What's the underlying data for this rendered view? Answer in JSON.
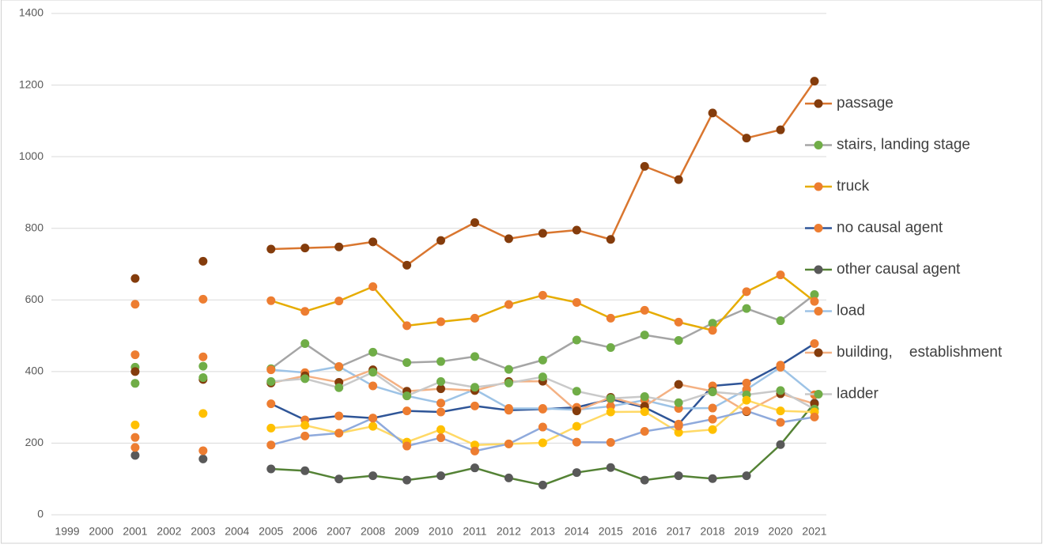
{
  "chart_data": {
    "type": "line",
    "categories": [
      "1999",
      "2000",
      "2001",
      "2002",
      "2003",
      "2004",
      "2005",
      "2006",
      "2007",
      "2008",
      "2009",
      "2010",
      "2011",
      "2012",
      "2013",
      "2014",
      "2015",
      "2016",
      "2017",
      "2018",
      "2019",
      "2020",
      "2021"
    ],
    "ylim": [
      0,
      1400
    ],
    "yticks": [
      0,
      200,
      400,
      600,
      800,
      1000,
      1200,
      1400
    ],
    "grid": true,
    "legend": "right",
    "series": [
      {
        "name": "passage",
        "color": "#d9762f",
        "marker_color": "#843c0c",
        "values": [
          null,
          null,
          660,
          null,
          708,
          null,
          742,
          745,
          748,
          762,
          697,
          766,
          816,
          771,
          786,
          795,
          769,
          973,
          936,
          1122,
          1052,
          1075,
          1211
        ]
      },
      {
        "name": "stairs, landing stage",
        "color": "#a5a5a5",
        "marker_color": "#70ad47",
        "values": [
          null,
          null,
          412,
          null,
          415,
          null,
          408,
          478,
          413,
          454,
          425,
          428,
          442,
          406,
          432,
          488,
          467,
          502,
          487,
          535,
          576,
          542,
          615
        ]
      },
      {
        "name": "truck",
        "color": "#e6ac00",
        "marker_color": "#ed7d31",
        "values": [
          null,
          null,
          588,
          null,
          602,
          null,
          598,
          568,
          597,
          637,
          528,
          539,
          549,
          587,
          613,
          593,
          549,
          571,
          538,
          515,
          623,
          670,
          596
        ]
      },
      {
        "name": "no causal agent",
        "color": "#2f5597",
        "marker_color": "#ed7d31",
        "values": [
          null,
          null,
          447,
          null,
          441,
          null,
          310,
          265,
          276,
          270,
          290,
          287,
          304,
          292,
          295,
          300,
          323,
          300,
          253,
          360,
          368,
          418,
          478
        ]
      },
      {
        "name": "other causal agent",
        "color": "#548235",
        "marker_color": "#595959",
        "values": [
          null,
          null,
          166,
          null,
          156,
          null,
          128,
          123,
          100,
          109,
          97,
          109,
          131,
          103,
          83,
          118,
          132,
          97,
          109,
          101,
          109,
          196,
          312
        ]
      },
      {
        "name": "load",
        "color": "#9dc3e6",
        "marker_color": "#ed7d31",
        "values": [
          null,
          null,
          216,
          null,
          null,
          null,
          405,
          397,
          414,
          360,
          332,
          312,
          350,
          297,
          297,
          293,
          303,
          320,
          297,
          298,
          350,
          412,
          335
        ]
      },
      {
        "name": "building,    establishment",
        "color": "#f4b183",
        "marker_color": "#843c0c",
        "values": [
          null,
          null,
          400,
          null,
          378,
          null,
          368,
          388,
          370,
          405,
          345,
          352,
          347,
          372,
          373,
          290,
          328,
          303,
          364,
          345,
          288,
          338,
          310
        ]
      },
      {
        "name": "ladder",
        "color": "#c9c9c9",
        "marker_color": "#70ad47",
        "values": [
          null,
          null,
          367,
          null,
          383,
          null,
          372,
          380,
          355,
          398,
          332,
          372,
          356,
          368,
          385,
          345,
          325,
          330,
          313,
          343,
          335,
          347,
          295
        ]
      },
      {
        "color": "#ffd966",
        "marker_color": "#ffc000",
        "values": [
          null,
          null,
          251,
          null,
          283,
          null,
          242,
          250,
          228,
          247,
          203,
          238,
          195,
          198,
          201,
          247,
          287,
          288,
          230,
          238,
          320,
          290,
          287
        ]
      },
      {
        "color": "#8faadc",
        "marker_color": "#ed7d31",
        "values": [
          null,
          null,
          188,
          null,
          179,
          null,
          195,
          220,
          228,
          270,
          192,
          215,
          178,
          198,
          245,
          203,
          202,
          233,
          248,
          267,
          290,
          258,
          273
        ]
      }
    ]
  }
}
